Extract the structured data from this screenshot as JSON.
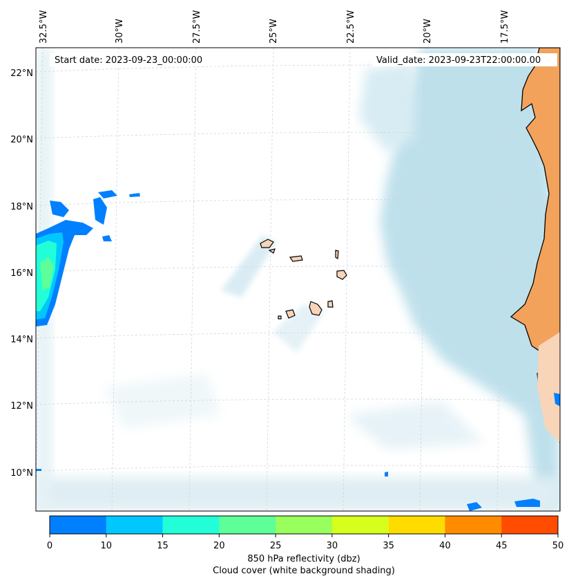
{
  "map": {
    "start_date": "Start date: 2023-09-23_00:00:00",
    "valid_date": "Valid_date: 2023-09-23T22:00:00.00",
    "lon_labels": [
      "32.5°W",
      "30°W",
      "27.5°W",
      "25°W",
      "22.5°W",
      "20°W",
      "17.5°W"
    ],
    "lat_labels": [
      "22°N",
      "20°N",
      "18°N",
      "16°N",
      "14°N",
      "12°N",
      "10°N"
    ]
  },
  "colorbar": {
    "ticks": [
      "0",
      "10",
      "15",
      "20",
      "25",
      "30",
      "35",
      "40",
      "45",
      "50"
    ],
    "colors": [
      "#0080ff",
      "#00c8ff",
      "#22ffd8",
      "#5eff98",
      "#98ff5c",
      "#d6ff1e",
      "#ffdc00",
      "#ff8c00",
      "#ff4c00"
    ],
    "label": "850 hPa reflectivity (dbz)",
    "sublabel": "Cloud cover (white background shading)"
  },
  "colors": {
    "land": "#f3a25b",
    "land_light": "#f8d4b8",
    "cloud": "#b7dde9",
    "coast": "#000000"
  }
}
